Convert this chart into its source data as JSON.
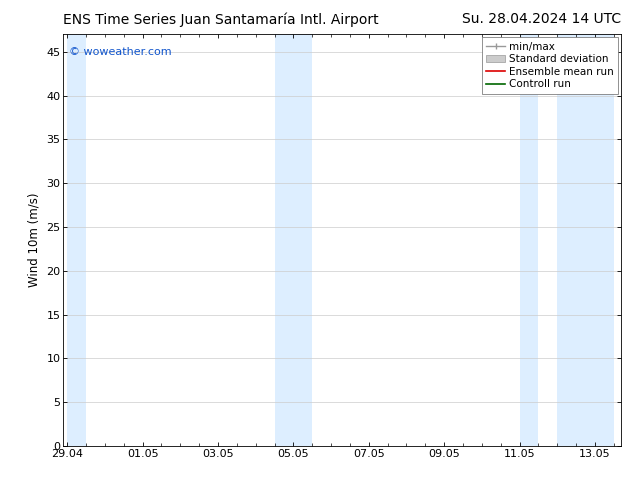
{
  "title_left": "ENS Time Series Juan Santamaría Intl. Airport",
  "title_right": "Su. 28.04.2024 14 UTC",
  "ylabel": "Wind 10m (m/s)",
  "ylim": [
    0,
    47
  ],
  "yticks": [
    0,
    5,
    10,
    15,
    20,
    25,
    30,
    35,
    40,
    45
  ],
  "xtick_labels": [
    "29.04",
    "01.05",
    "03.05",
    "05.05",
    "07.05",
    "09.05",
    "11.05",
    "13.05"
  ],
  "xtick_positions": [
    0,
    2,
    4,
    6,
    8,
    10,
    12,
    14
  ],
  "xlim": [
    -0.1,
    14.7
  ],
  "shaded_regions": [
    [
      0.0,
      0.5
    ],
    [
      5.5,
      6.5
    ],
    [
      12.0,
      12.5
    ],
    [
      13.0,
      14.5
    ]
  ],
  "shade_color": "#ddeeff",
  "watermark_text": "© woweather.com",
  "watermark_color": "#1155cc",
  "background_color": "#ffffff",
  "title_fontsize": 10,
  "tick_label_fontsize": 8,
  "ylabel_fontsize": 8.5,
  "legend_fontsize": 7.5
}
